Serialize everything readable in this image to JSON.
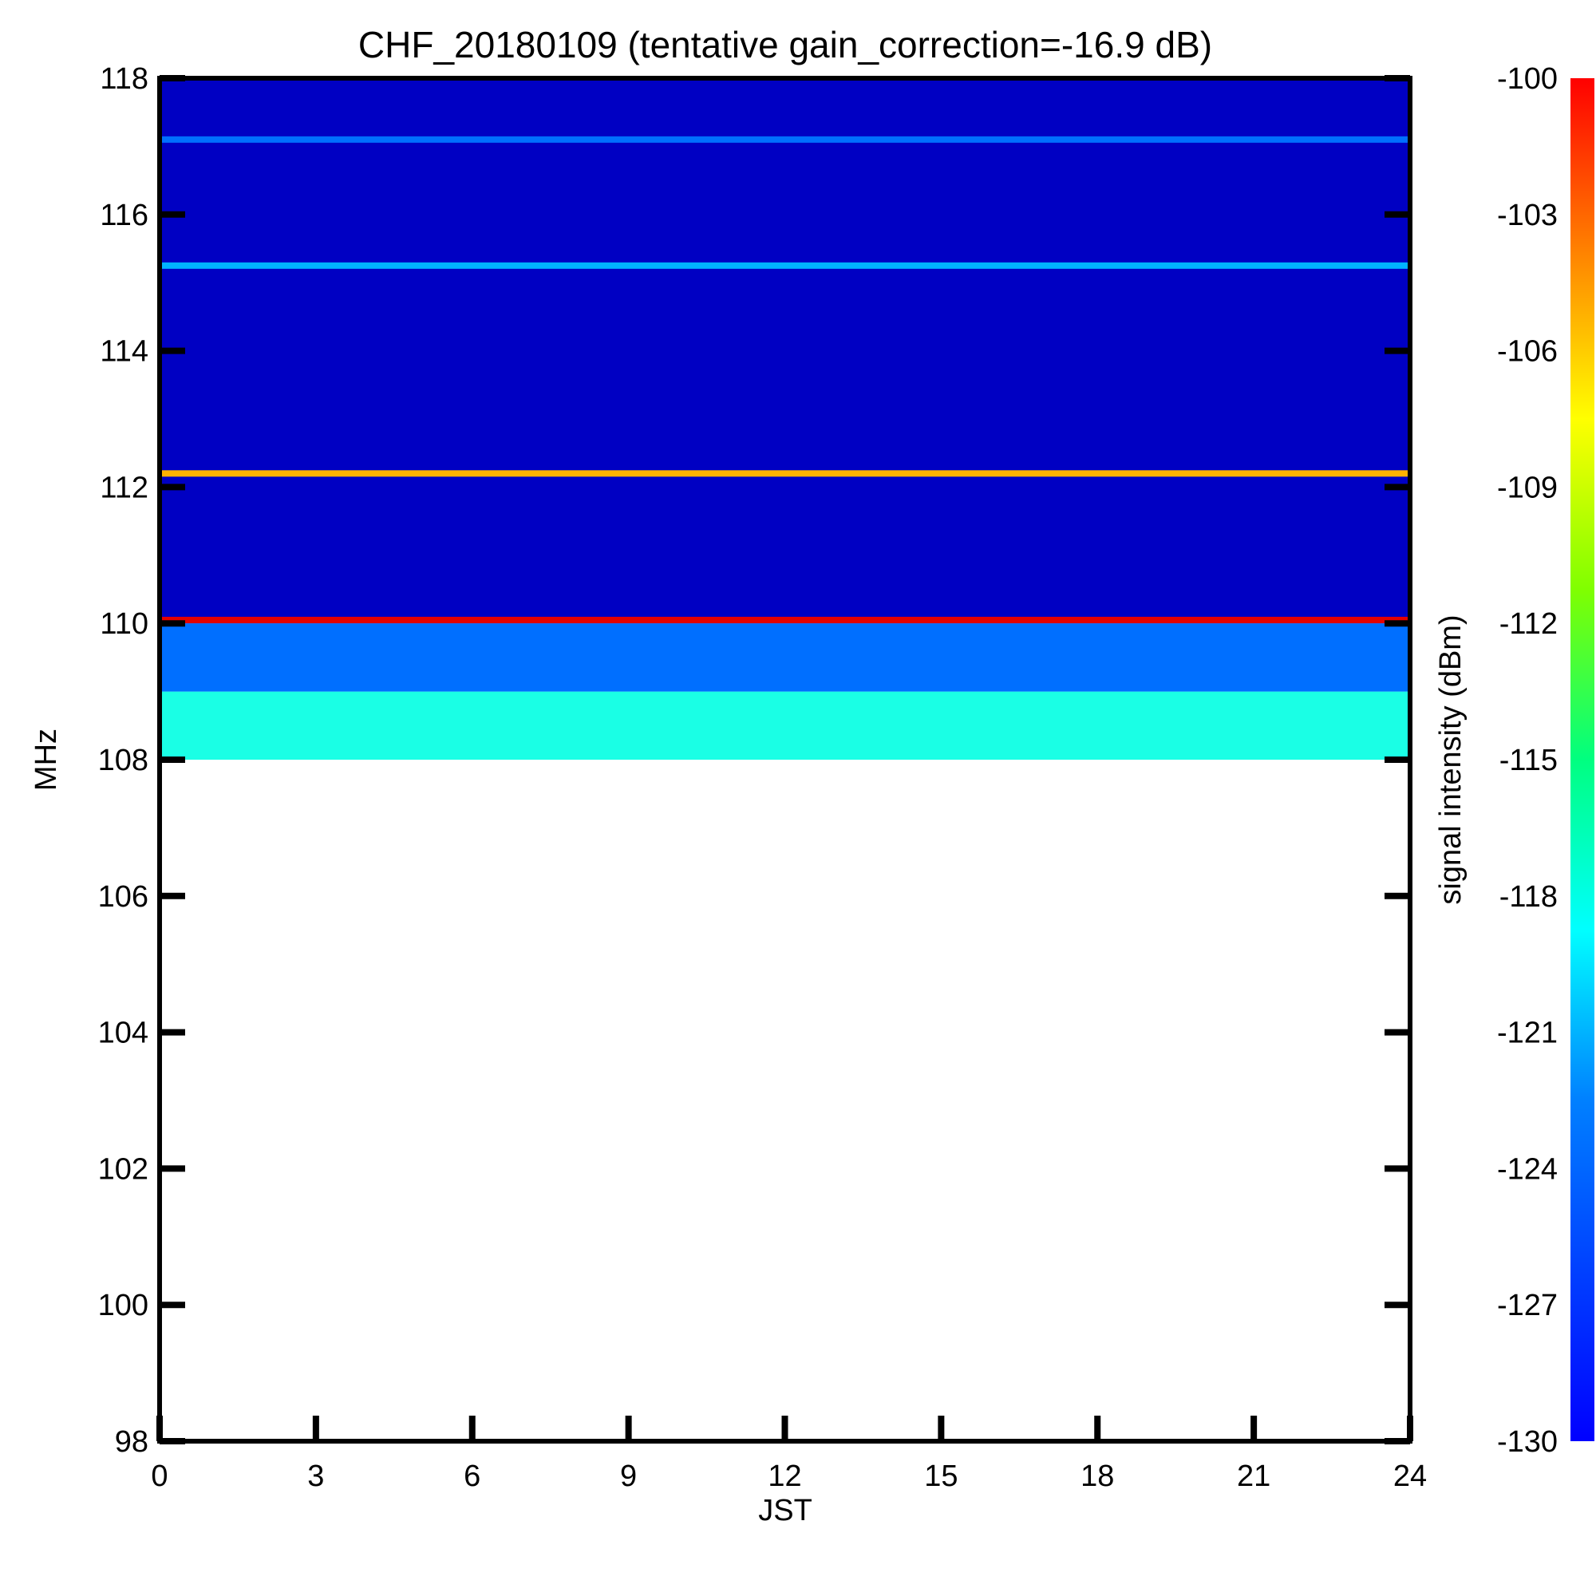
{
  "chart_data": {
    "type": "heatmap",
    "title": "CHF_20180109 (tentative gain_correction=-16.9 dB)",
    "xlabel": "JST",
    "ylabel": "MHz",
    "colorbar_label": "signal intensity (dBm)",
    "xlim": [
      0,
      24
    ],
    "ylim": [
      98,
      118
    ],
    "x_ticks": [
      0,
      3,
      6,
      9,
      12,
      15,
      18,
      21,
      24
    ],
    "y_ticks": [
      98,
      100,
      102,
      104,
      106,
      108,
      110,
      112,
      114,
      116,
      118
    ],
    "color_range": [
      -130,
      -100
    ],
    "colorbar_ticks": [
      -100,
      -103,
      -106,
      -109,
      -112,
      -115,
      -118,
      -121,
      -124,
      -127,
      -130
    ],
    "colormap": "jet",
    "data_extent": {
      "freq_min": 108,
      "freq_max": 118,
      "time_min": 0,
      "time_max": 24
    },
    "strong_lines": [
      {
        "freq": 110.05,
        "level": -103
      },
      {
        "freq": 112.2,
        "level": -109
      },
      {
        "freq": 115.25,
        "level": -121
      },
      {
        "freq": 117.1,
        "level": -123
      }
    ],
    "band_levels": [
      {
        "from": 108,
        "to": 109,
        "level": -118
      },
      {
        "from": 109,
        "to": 110,
        "level": -123
      },
      {
        "from": 110,
        "to": 118,
        "level": -128
      }
    ],
    "grid": false
  }
}
